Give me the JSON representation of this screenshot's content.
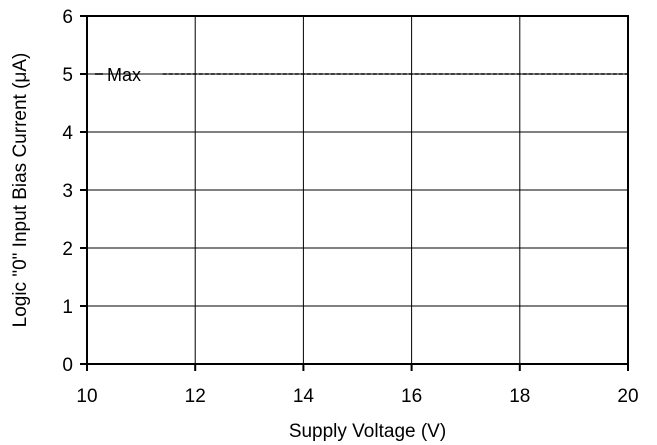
{
  "chart_data": {
    "type": "line",
    "title": "",
    "xlabel": "Supply Voltage (V)",
    "ylabel": "Logic \"0\" Input Bias Current  (μA)",
    "xlim": [
      10,
      20
    ],
    "ylim": [
      0,
      6
    ],
    "x_ticks": [
      10,
      12,
      14,
      16,
      18,
      20
    ],
    "y_ticks": [
      0,
      1,
      2,
      3,
      4,
      5,
      6
    ],
    "grid": true,
    "legend": "none",
    "series": [
      {
        "name": "Max",
        "style": "dashed",
        "color": "#000000",
        "x": [
          11.4,
          20
        ],
        "y": [
          5,
          5
        ]
      }
    ]
  }
}
